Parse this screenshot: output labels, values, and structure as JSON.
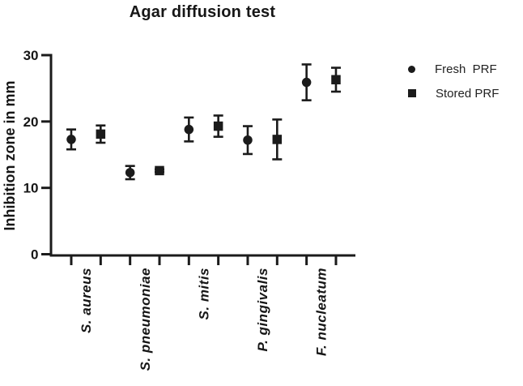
{
  "chart_data": {
    "type": "scatter",
    "title": "Agar diffusion test",
    "ylabel": "Inhibition zone in mm",
    "xlabel": "",
    "ylim": [
      0,
      30
    ],
    "yticks": [
      0,
      10,
      20,
      30
    ],
    "grid": false,
    "legend_position": "right-outside",
    "categories": [
      "S. aureus",
      "S. pneumoniae",
      "S. mitis",
      "P. gingivalis",
      "F. nucleatum"
    ],
    "series": [
      {
        "name": "Fresh  PRF",
        "marker": "circle",
        "values": [
          17.3,
          12.3,
          18.8,
          17.2,
          25.9
        ],
        "errors": [
          1.5,
          1.0,
          1.8,
          2.1,
          2.7
        ]
      },
      {
        "name": "Stored PRF",
        "marker": "square",
        "values": [
          18.1,
          12.6,
          19.3,
          17.3,
          26.3
        ],
        "errors": [
          1.3,
          0.2,
          1.6,
          3.0,
          1.8
        ]
      }
    ],
    "colors": {
      "marker": "#1b1b1b",
      "axis": "#1b1b1b",
      "text": "#161616",
      "background": "#ffffff"
    }
  }
}
